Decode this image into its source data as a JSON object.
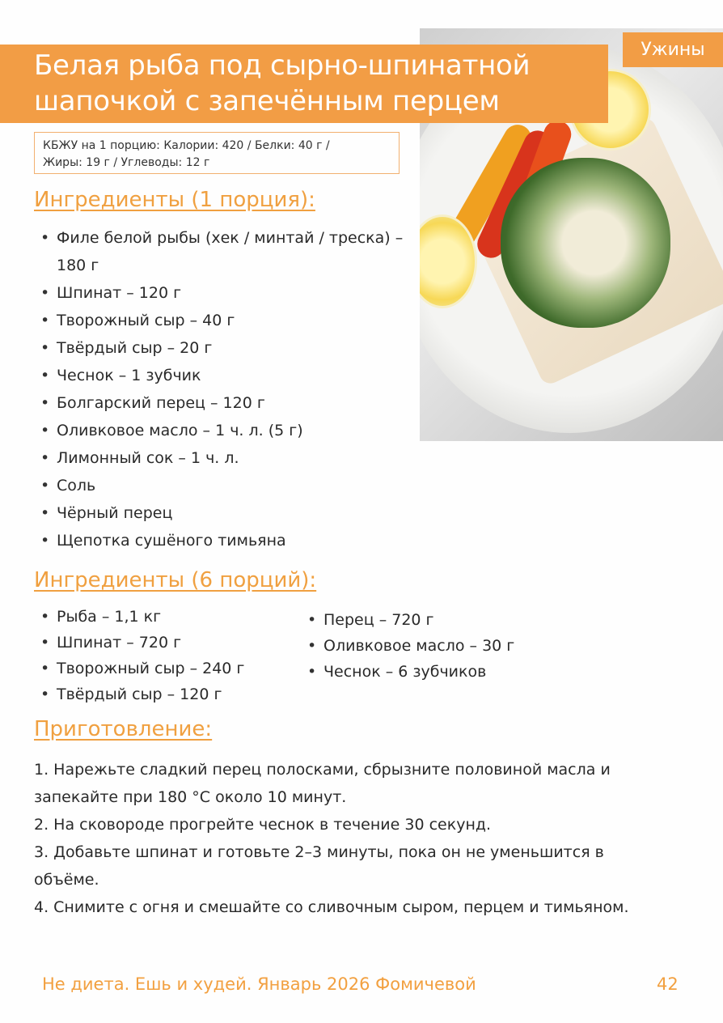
{
  "header": {
    "title_line1": "Белая рыба под сырно-шпинатной",
    "title_line2": "шапочкой с запечённым перцем",
    "category_tag": "Ужины"
  },
  "nutrition": {
    "line1": "КБЖУ на 1 порцию: Калории: 420 / Белки: 40 г /",
    "line2": "Жиры: 19 г / Углеводы: 12 г"
  },
  "ingredients_single": {
    "heading": "Ингредиенты (1 порция):",
    "items": [
      "Филе белой рыбы (хек / минтай / треска) – 180 г",
      "Шпинат – 120 г",
      "Творожный сыр – 40 г",
      "Твёрдый сыр – 20 г",
      "Чеснок – 1 зубчик",
      "Болгарский перец – 120 г",
      "Оливковое масло – 1 ч. л. (5 г)",
      "Лимонный сок – 1 ч. л.",
      "Соль",
      "Чёрный перец",
      "Щепотка сушёного тимьяна"
    ]
  },
  "ingredients_six": {
    "heading": "Ингредиенты (6 порций):",
    "left": [
      "Рыба – 1,1 кг",
      "Шпинат – 720 г",
      "Творожный сыр – 240 г",
      "Твёрдый сыр – 120 г"
    ],
    "right": [
      "Перец – 720 г",
      "Оливковое масло – 30 г",
      "Чеснок – 6 зубчиков"
    ]
  },
  "preparation": {
    "heading": "Приготовление:",
    "steps": [
      "1. Нарежьте сладкий перец полосками, сбрызните половиной масла и запекайте при 180 °C около 10 минут.",
      "2. На сковороде прогрейте чеснок в течение 30 секунд.",
      "3. Добавьте шпинат и готовьте 2–3 минуты, пока он не уменьшится в объёме.",
      "4. Снимите с огня и смешайте со сливочным сыром, перцем и тимьяном."
    ]
  },
  "footer": {
    "text": "Не диета. Ешь и худей. Январь 2026 Фомичевой",
    "page_number": "42"
  },
  "colors": {
    "accent": "#f29d45",
    "heading": "#f0a040"
  }
}
